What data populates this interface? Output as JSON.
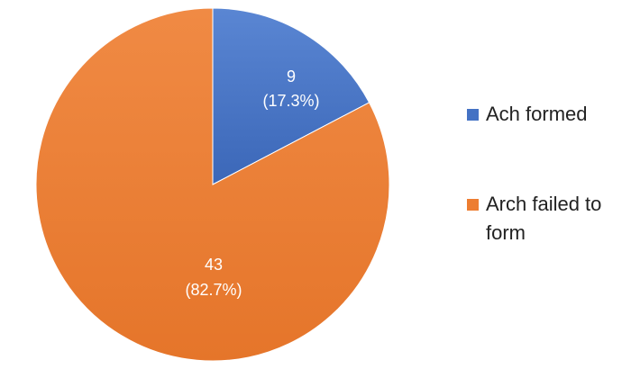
{
  "chart_data": {
    "type": "pie",
    "slices": [
      {
        "label": "Ach formed",
        "value": 9,
        "percent_label": "(17.3%)",
        "value_label": "9",
        "color": "#4472C4"
      },
      {
        "label": "Arch failed to form",
        "value": 43,
        "percent_label": "(82.7%)",
        "value_label": "43",
        "color": "#ED7D31"
      }
    ],
    "legend": {
      "position": "right",
      "lines": [
        [
          "Ach formed"
        ],
        [
          "Arch failed to",
          "form"
        ]
      ]
    }
  }
}
